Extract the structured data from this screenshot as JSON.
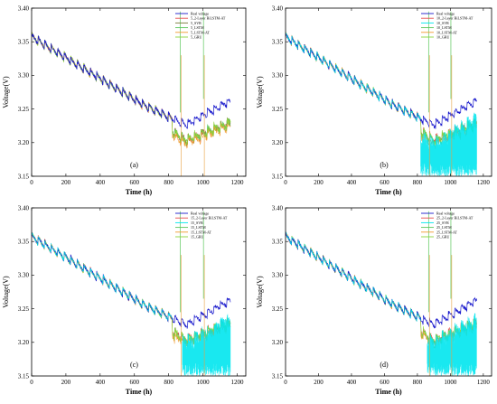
{
  "chart_data": [
    {
      "type": "line",
      "panel_label": "(a)",
      "xlabel": "Time (h)",
      "ylabel": "Voltage(V)",
      "xlim": [
        0,
        1250
      ],
      "ylim": [
        3.15,
        3.4
      ],
      "xticks": [
        "0",
        "200",
        "400",
        "600",
        "800",
        "1000",
        "1200"
      ],
      "yticks": [
        "3.15",
        "3.20",
        "3.25",
        "3.30",
        "3.35",
        "3.40"
      ],
      "legend_position": "top-right",
      "series": [
        {
          "name": "Real voltage",
          "color": "#1a1acc",
          "profile": "real"
        },
        {
          "name": "5_2-Layer BiLSTM-AT",
          "color": "#e64d4d",
          "profile": "stable"
        },
        {
          "name": "5_SVR",
          "color": "#7a7a3a",
          "profile": "stable"
        },
        {
          "name": "5_LSTM",
          "color": "#5cc85c",
          "profile": "stable"
        },
        {
          "name": "5_LSTM-AT",
          "color": "#f29a2e",
          "profile": "drop"
        },
        {
          "name": "5_GRU",
          "color": "#8cd43c",
          "profile": "stable"
        }
      ]
    },
    {
      "type": "line",
      "panel_label": "(b)",
      "xlabel": "Time (h)",
      "ylabel": "Voltage(V)",
      "xlim": [
        0,
        1250
      ],
      "ylim": [
        3.15,
        3.4
      ],
      "xticks": [
        "0",
        "200",
        "400",
        "600",
        "800",
        "1000",
        "1200"
      ],
      "yticks": [
        "3.15",
        "3.20",
        "3.25",
        "3.30",
        "3.35",
        "3.40"
      ],
      "legend_position": "top-right",
      "series": [
        {
          "name": "Real voltage",
          "color": "#1a1acc",
          "profile": "real"
        },
        {
          "name": "10_2-Layer BiLSTM-AT",
          "color": "#e64d4d",
          "profile": "stable"
        },
        {
          "name": "10_SVR",
          "color": "#00e5ee",
          "profile": "noisy"
        },
        {
          "name": "10_LSTM",
          "color": "#5cc85c",
          "profile": "stable"
        },
        {
          "name": "10_LSTM-AT",
          "color": "#f29a2e",
          "profile": "drop"
        },
        {
          "name": "10_GRU",
          "color": "#8cd43c",
          "profile": "stable"
        }
      ]
    },
    {
      "type": "line",
      "panel_label": "(c)",
      "xlabel": "Time (h)",
      "ylabel": "Voltage(V)",
      "xlim": [
        0,
        1250
      ],
      "ylim": [
        3.15,
        3.4
      ],
      "xticks": [
        "0",
        "200",
        "400",
        "600",
        "800",
        "1000",
        "1200"
      ],
      "yticks": [
        "3.15",
        "3.20",
        "3.25",
        "3.30",
        "3.35",
        "3.40"
      ],
      "legend_position": "top-right",
      "series": [
        {
          "name": "Real voltage",
          "color": "#1a1acc",
          "profile": "real"
        },
        {
          "name": "15_2-Layer BiLSTM-AT",
          "color": "#e64d4d",
          "profile": "stable"
        },
        {
          "name": "15_SVR",
          "color": "#00e5ee",
          "profile": "noisy"
        },
        {
          "name": "15_LSTM",
          "color": "#5cc85c",
          "profile": "stable"
        },
        {
          "name": "15_LSTM-AT",
          "color": "#f29a2e",
          "profile": "drop"
        },
        {
          "name": "15_GRU",
          "color": "#8cd43c",
          "profile": "stable"
        }
      ]
    },
    {
      "type": "line",
      "panel_label": "(d)",
      "xlabel": "Time (h)",
      "ylabel": "Voltage(V)",
      "xlim": [
        0,
        1250
      ],
      "ylim": [
        3.15,
        3.4
      ],
      "xticks": [
        "0",
        "200",
        "400",
        "600",
        "800",
        "1000",
        "1200"
      ],
      "yticks": [
        "3.15",
        "3.20",
        "3.25",
        "3.30",
        "3.35",
        "3.40"
      ],
      "legend_position": "top-right",
      "series": [
        {
          "name": "Real voltage",
          "color": "#1a1acc",
          "profile": "real"
        },
        {
          "name": "25_2-Layer BiLSTM-AT",
          "color": "#e64d4d",
          "profile": "stable"
        },
        {
          "name": "25_SVR",
          "color": "#00e5ee",
          "profile": "noisy"
        },
        {
          "name": "25_LSTM",
          "color": "#5cc85c",
          "profile": "stable"
        },
        {
          "name": "25_LSTM-AT",
          "color": "#f29a2e",
          "profile": "drop"
        },
        {
          "name": "25_GRU",
          "color": "#8cd43c",
          "profile": "stable"
        }
      ]
    }
  ]
}
